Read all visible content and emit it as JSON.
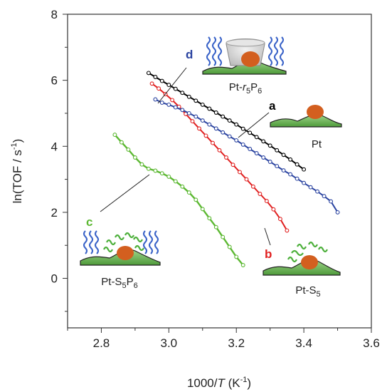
{
  "chart_data": {
    "type": "line",
    "xlabel": {
      "pre": "1000/",
      "var": "T",
      "post": " (K",
      "sup": "-1",
      "end": ")"
    },
    "ylabel": {
      "pre": "ln(TOF / s",
      "sup": "-1",
      "end": ")"
    },
    "xlim": [
      2.7,
      3.6
    ],
    "ylim": [
      -1.5,
      8
    ],
    "xticks": [
      "2.8",
      "3.0",
      "3.2",
      "3.4",
      "3.6"
    ],
    "yticks": [
      "0",
      "2",
      "4",
      "6",
      "8"
    ],
    "colors": {
      "a": "#000000",
      "b": "#e02020",
      "c": "#5cb832",
      "d": "#2a43a0",
      "pt": "#d35f1f",
      "support": "#6aa84f",
      "ligand_blue": "#3a63c8",
      "ligand_green": "#4caf3a",
      "cage": "#c9c9c9"
    },
    "series": [
      {
        "label": "a",
        "color": "#000000",
        "x": [
          2.94,
          2.96,
          2.98,
          3.0,
          3.02,
          3.04,
          3.06,
          3.08,
          3.1,
          3.12,
          3.14,
          3.16,
          3.18,
          3.2,
          3.22,
          3.24,
          3.26,
          3.28,
          3.3,
          3.32,
          3.34,
          3.36,
          3.38,
          3.4
        ],
        "y": [
          6.22,
          6.1,
          5.98,
          5.86,
          5.74,
          5.62,
          5.5,
          5.38,
          5.26,
          5.14,
          5.02,
          4.9,
          4.78,
          4.66,
          4.53,
          4.41,
          4.28,
          4.15,
          4.02,
          3.88,
          3.74,
          3.6,
          3.45,
          3.3
        ]
      },
      {
        "label": "b",
        "color": "#e02020",
        "x": [
          2.95,
          2.97,
          2.99,
          3.01,
          3.03,
          3.05,
          3.07,
          3.09,
          3.11,
          3.13,
          3.15,
          3.17,
          3.19,
          3.21,
          3.23,
          3.25,
          3.27,
          3.29,
          3.31,
          3.33,
          3.35
        ],
        "y": [
          5.9,
          5.75,
          5.58,
          5.4,
          5.2,
          4.98,
          4.76,
          4.54,
          4.32,
          4.1,
          3.88,
          3.66,
          3.44,
          3.22,
          3.0,
          2.78,
          2.56,
          2.34,
          2.09,
          1.8,
          1.45
        ]
      },
      {
        "label": "c",
        "color": "#5cb832",
        "x": [
          2.84,
          2.86,
          2.88,
          2.9,
          2.92,
          2.94,
          2.96,
          2.98,
          3.0,
          3.02,
          3.04,
          3.06,
          3.08,
          3.1,
          3.12,
          3.14,
          3.16,
          3.18,
          3.2,
          3.22
        ],
        "y": [
          4.35,
          4.12,
          3.9,
          3.66,
          3.45,
          3.32,
          3.26,
          3.18,
          3.08,
          2.94,
          2.78,
          2.6,
          2.38,
          2.1,
          1.82,
          1.55,
          1.25,
          0.95,
          0.65,
          0.4
        ]
      },
      {
        "label": "d",
        "color": "#2a43a0",
        "x": [
          2.96,
          2.98,
          3.0,
          3.02,
          3.04,
          3.06,
          3.08,
          3.1,
          3.12,
          3.14,
          3.16,
          3.18,
          3.2,
          3.22,
          3.24,
          3.26,
          3.28,
          3.3,
          3.32,
          3.34,
          3.36,
          3.38,
          3.4,
          3.42,
          3.44,
          3.46,
          3.48,
          3.5
        ],
        "y": [
          5.42,
          5.32,
          5.26,
          5.18,
          5.1,
          5.0,
          4.9,
          4.78,
          4.66,
          4.54,
          4.42,
          4.3,
          4.18,
          4.05,
          3.92,
          3.79,
          3.66,
          3.53,
          3.4,
          3.27,
          3.15,
          3.02,
          2.89,
          2.76,
          2.63,
          2.49,
          2.33,
          2.0
        ]
      }
    ],
    "annotations": [
      {
        "letter": "a",
        "sub_pre": "Pt",
        "sub_text": "",
        "sub_post": "",
        "sub2": "",
        "sub2_post": ""
      },
      {
        "letter": "b",
        "sub_pre": "Pt-S",
        "sub_text": "5",
        "sub_post": "",
        "sub2": "",
        "sub2_post": ""
      },
      {
        "letter": "c",
        "sub_pre": "Pt-S",
        "sub_text": "5",
        "sub_post": "P",
        "sub2": "6",
        "sub2_post": ""
      },
      {
        "letter": "d",
        "sub_pre": "Pt-",
        "sub_text": "r",
        "sub_post": "5",
        "sub2": "P",
        "sub2_post": "6"
      }
    ]
  }
}
